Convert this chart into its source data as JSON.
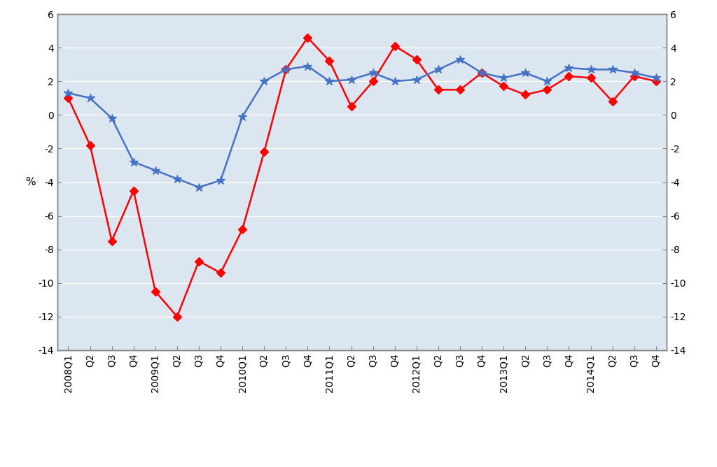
{
  "ylabel_left": "%",
  "ylim": [
    -14,
    6
  ],
  "yticks": [
    -14,
    -12,
    -10,
    -8,
    -6,
    -4,
    -2,
    0,
    2,
    4,
    6
  ],
  "labels": [
    "2008Q1",
    "Q2",
    "Q3",
    "Q4",
    "2009Q1",
    "Q2",
    "Q3",
    "Q4",
    "2010Q1",
    "Q2",
    "Q3",
    "Q4",
    "2011Q1",
    "Q2",
    "Q3",
    "Q4",
    "2012Q1",
    "Q2",
    "Q3",
    "Q4",
    "2013Q1",
    "Q2",
    "Q3",
    "Q4",
    "2014Q1",
    "Q2",
    "Q3",
    "Q4"
  ],
  "ceir": [
    1.0,
    -1.8,
    -7.5,
    -4.5,
    -10.5,
    -12.0,
    -8.7,
    -9.4,
    -6.8,
    -2.2,
    2.7,
    4.6,
    3.2,
    0.5,
    2.0,
    4.1,
    3.3,
    1.5,
    1.5,
    2.5,
    1.7,
    1.2,
    1.5,
    2.3,
    2.2,
    0.8,
    2.3,
    2.0
  ],
  "gdp": [
    1.3,
    1.0,
    -0.2,
    -2.8,
    -3.3,
    -3.8,
    -4.3,
    -3.9,
    -0.1,
    2.0,
    2.7,
    2.9,
    2.0,
    2.1,
    2.5,
    2.0,
    2.1,
    2.7,
    3.3,
    2.5,
    2.2,
    2.5,
    2.0,
    2.8,
    2.7,
    2.7,
    2.5,
    2.2
  ],
  "ceir_color": "#FF0000",
  "gdp_color": "#4472C4",
  "background_color": "#FFFFFF",
  "plot_bg_color": "#DCE6F1",
  "grid_color": "#FFFFFF",
  "spine_color": "#808080",
  "title_fontsize": 11,
  "axis_label_fontsize": 11,
  "tick_fontsize": 10,
  "legend_fontsize": 10,
  "line_width": 1.8,
  "ceir_markersize": 6,
  "gdp_markersize": 9
}
